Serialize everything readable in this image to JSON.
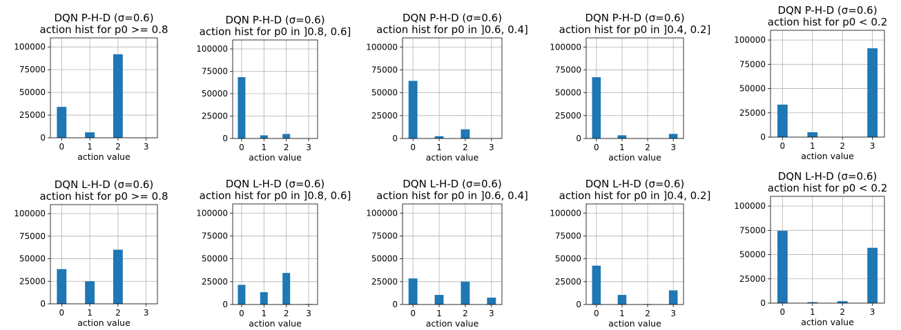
{
  "style": {
    "bar_color": "#1f77b4",
    "grid": true
  },
  "chart_data": [
    {
      "type": "bar",
      "title": [
        "DQN P-H-D (σ=0.6)",
        "action hist for p0 >= 0.8"
      ],
      "xlabel": "action value",
      "categories": [
        "0",
        "1",
        "2",
        "3"
      ],
      "values": [
        34000,
        6000,
        92000,
        0
      ],
      "ylim": [
        0,
        110000
      ],
      "yticks": [
        "0",
        "25000",
        "50000",
        "75000",
        "100000"
      ]
    },
    {
      "type": "bar",
      "title": [
        "DQN P-H-D (σ=0.6)",
        "action hist for p0 in ]0.8, 0.6]"
      ],
      "xlabel": "action value",
      "categories": [
        "0",
        "1",
        "2",
        "3"
      ],
      "values": [
        68500,
        3500,
        5000,
        0
      ],
      "ylim": [
        0,
        110000
      ],
      "yticks": [
        "0",
        "25000",
        "50000",
        "75000",
        "100000"
      ]
    },
    {
      "type": "bar",
      "title": [
        "DQN P-H-D (σ=0.6)",
        "action hist for p0 in ]0.6, 0.4]"
      ],
      "xlabel": "action value",
      "categories": [
        "0",
        "1",
        "2",
        "3"
      ],
      "values": [
        63000,
        2500,
        10000,
        0
      ],
      "ylim": [
        0,
        110000
      ],
      "yticks": [
        "0",
        "25000",
        "50000",
        "75000",
        "100000"
      ]
    },
    {
      "type": "bar",
      "title": [
        "DQN P-H-D (σ=0.6)",
        "action hist for p0 in ]0.4, 0.2]"
      ],
      "xlabel": "action value",
      "categories": [
        "0",
        "1",
        "2",
        "3"
      ],
      "values": [
        67000,
        3500,
        0,
        5000
      ],
      "ylim": [
        0,
        110000
      ],
      "yticks": [
        "0",
        "25000",
        "50000",
        "75000",
        "100000"
      ]
    },
    {
      "type": "bar",
      "title": [
        "DQN P-H-D (σ=0.6)",
        "action hist for p0 < 0.2"
      ],
      "xlabel": "action value",
      "categories": [
        "0",
        "1",
        "2",
        "3"
      ],
      "values": [
        33500,
        5000,
        0,
        91500
      ],
      "ylim": [
        0,
        110000
      ],
      "yticks": [
        "0",
        "25000",
        "50000",
        "75000",
        "100000"
      ]
    },
    {
      "type": "bar",
      "title": [
        "DQN L-H-D (σ=0.6)",
        "action hist for p0 >= 0.8"
      ],
      "xlabel": "action value",
      "categories": [
        "0",
        "1",
        "2",
        "3"
      ],
      "values": [
        38500,
        25000,
        60000,
        0
      ],
      "ylim": [
        0,
        110000
      ],
      "yticks": [
        "0",
        "25000",
        "50000",
        "75000",
        "100000"
      ]
    },
    {
      "type": "bar",
      "title": [
        "DQN L-H-D (σ=0.6)",
        "action hist for p0 in ]0.8, 0.6]"
      ],
      "xlabel": "action value",
      "categories": [
        "0",
        "1",
        "2",
        "3"
      ],
      "values": [
        21500,
        13500,
        34500,
        500
      ],
      "ylim": [
        0,
        110000
      ],
      "yticks": [
        "0",
        "25000",
        "50000",
        "75000",
        "100000"
      ]
    },
    {
      "type": "bar",
      "title": [
        "DQN L-H-D (σ=0.6)",
        "action hist for p0 in ]0.6, 0.4]"
      ],
      "xlabel": "action value",
      "categories": [
        "0",
        "1",
        "2",
        "3"
      ],
      "values": [
        28500,
        10500,
        25000,
        7500
      ],
      "ylim": [
        0,
        110000
      ],
      "yticks": [
        "0",
        "25000",
        "50000",
        "75000",
        "100000"
      ]
    },
    {
      "type": "bar",
      "title": [
        "DQN L-H-D (σ=0.6)",
        "action hist for p0 in ]0.4, 0.2]"
      ],
      "xlabel": "action value",
      "categories": [
        "0",
        "1",
        "2",
        "3"
      ],
      "values": [
        42500,
        10500,
        500,
        15500
      ],
      "ylim": [
        0,
        110000
      ],
      "yticks": [
        "0",
        "25000",
        "50000",
        "75000",
        "100000"
      ]
    },
    {
      "type": "bar",
      "title": [
        "DQN L-H-D (σ=0.6)",
        "action hist for p0 < 0.2"
      ],
      "xlabel": "action value",
      "categories": [
        "0",
        "1",
        "2",
        "3"
      ],
      "values": [
        74500,
        1000,
        2000,
        57000
      ],
      "ylim": [
        0,
        110000
      ],
      "yticks": [
        "0",
        "25000",
        "50000",
        "75000",
        "100000"
      ]
    }
  ]
}
